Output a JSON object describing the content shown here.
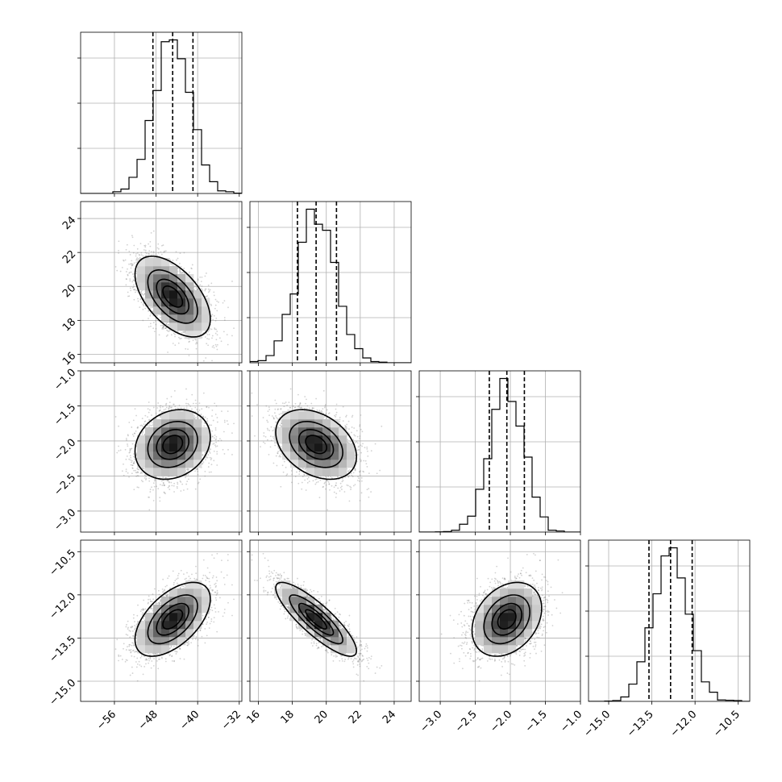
{
  "chart_data": {
    "type": "corner",
    "parameters": [
      {
        "range": [
          -62.5,
          -31.5
        ],
        "ticks": [
          -56,
          -48,
          -40,
          -32
        ],
        "tick_labels": [
          "−56",
          "−48",
          "−40",
          "−32"
        ],
        "mean": -44.8,
        "sd": 3.5,
        "quantiles": [
          -48.6,
          -44.8,
          -40.9
        ]
      },
      {
        "range": [
          15.5,
          25.0
        ],
        "ticks": [
          16,
          18,
          20,
          22,
          24
        ],
        "tick_labels": [
          "16",
          "18",
          "20",
          "22",
          "24"
        ],
        "mean": 19.4,
        "sd": 1.15,
        "quantiles": [
          18.3,
          19.4,
          20.6
        ]
      },
      {
        "range": [
          -3.3,
          -1.0
        ],
        "ticks": [
          -3.0,
          -2.5,
          -2.0,
          -1.5,
          -1.0
        ],
        "tick_labels": [
          "−3.0",
          "−2.5",
          "−2.0",
          "−1.5",
          "−1.0"
        ],
        "mean": -2.05,
        "sd": 0.24,
        "quantiles": [
          -2.3,
          -2.05,
          -1.8
        ]
      },
      {
        "range": [
          -15.7,
          -10.1
        ],
        "ticks": [
          -15.0,
          -13.5,
          -12.0,
          -10.5
        ],
        "tick_labels": [
          "−15.0",
          "−13.5",
          "−12.0",
          "−10.5"
        ],
        "mean": -12.85,
        "sd": 0.62,
        "quantiles": [
          -13.6,
          -12.85,
          -12.1
        ]
      }
    ],
    "correlations": [
      [
        1.0,
        -0.55,
        0.2,
        0.55
      ],
      [
        -0.55,
        1.0,
        -0.35,
        -0.85
      ],
      [
        0.2,
        -0.35,
        1.0,
        0.3
      ],
      [
        0.55,
        -0.85,
        0.3,
        1.0
      ]
    ],
    "contour_levels": [
      0.5,
      1.0,
      1.5,
      2.0
    ],
    "grid": true,
    "quantile_line_style": "dashed",
    "scatter_color": "#7f7f7f",
    "density_colormap": "greys"
  }
}
